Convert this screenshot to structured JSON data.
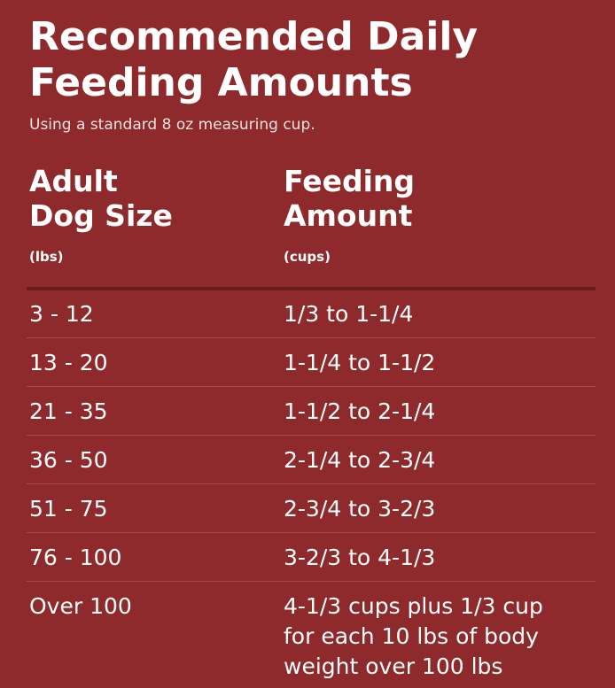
{
  "header": {
    "title_lines": [
      "Recommended Daily",
      "Feeding Amounts"
    ],
    "subtitle": "Using a standard 8 oz measuring cup."
  },
  "table": {
    "columns": [
      {
        "label_lines": [
          "Adult",
          "Dog Size"
        ],
        "unit": "(lbs)"
      },
      {
        "label_lines": [
          "Feeding",
          "Amount"
        ],
        "unit": "(cups)"
      }
    ],
    "rows": [
      [
        [
          "3 - 12"
        ],
        [
          "1/3 to 1-1/4"
        ]
      ],
      [
        [
          "13 - 20"
        ],
        [
          "1-1/4 to 1-1/2"
        ]
      ],
      [
        [
          "21 - 35"
        ],
        [
          "1-1/2 to 2-1/4"
        ]
      ],
      [
        [
          "36 - 50"
        ],
        [
          "2-1/4 to 2-3/4"
        ]
      ],
      [
        [
          "51 - 75"
        ],
        [
          "2-3/4 to 3-2/3"
        ]
      ],
      [
        [
          "76 - 100"
        ],
        [
          "3-2/3 to 4-1/3"
        ]
      ],
      [
        [
          "Over 100"
        ],
        [
          "4-1/3 cups plus 1/3 cup",
          "for each 10 lbs of body",
          "weight over 100 lbs"
        ]
      ]
    ]
  }
}
